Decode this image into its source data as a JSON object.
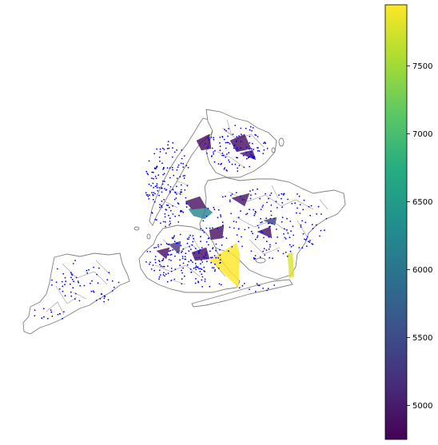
{
  "map": {
    "outline_color": "#808080",
    "point_color": "#0000ff",
    "region_style": "grey tract outlines with blue point markers; a few colored polygons"
  },
  "colorbar": {
    "colormap": "viridis",
    "vmin": 4750,
    "vmax": 7950,
    "ticks": [
      {
        "value": 5000,
        "label": "5000"
      },
      {
        "value": 5500,
        "label": "5500"
      },
      {
        "value": 6000,
        "label": "6000"
      },
      {
        "value": 6500,
        "label": "6500"
      },
      {
        "value": 7000,
        "label": "7000"
      },
      {
        "value": 7500,
        "label": "7500"
      }
    ]
  },
  "colored_polygons": [
    {
      "name": "polygon-queens-southeast",
      "value": 7950
    },
    {
      "name": "polygon-jamaica-bay-east",
      "value": 7800
    },
    {
      "name": "polygon-queens-center",
      "value": 6200
    },
    {
      "name": "polygon-queens-east",
      "value": 5400
    },
    {
      "name": "polygon-brooklyn-west",
      "value": 5200
    },
    {
      "name": "polygon-bronx-north",
      "value": 4800
    },
    {
      "name": "polygon-bronx-east",
      "value": 4820
    },
    {
      "name": "polygon-bronx-south",
      "value": 4850
    },
    {
      "name": "polygon-queens-north",
      "value": 4900
    },
    {
      "name": "polygon-queens-west",
      "value": 4880
    },
    {
      "name": "polygon-brooklyn-center",
      "value": 4860
    },
    {
      "name": "polygon-brooklyn-south",
      "value": 4830
    },
    {
      "name": "polygon-queens-south",
      "value": 4870
    },
    {
      "name": "polygon-brooklyn-east",
      "value": 4840
    }
  ]
}
